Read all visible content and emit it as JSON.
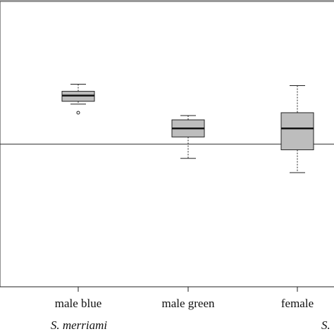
{
  "chart_data": {
    "type": "box",
    "categories": [
      "male blue",
      "male green",
      "female"
    ],
    "whisker_high": [
      0.42,
      0.2,
      0.41
    ],
    "q3": [
      0.37,
      0.17,
      0.22
    ],
    "median": [
      0.34,
      0.11,
      0.11
    ],
    "q1": [
      0.3,
      0.05,
      -0.04
    ],
    "whisker_low": [
      0.28,
      -0.1,
      -0.2
    ],
    "outliers": [
      [
        0.22
      ],
      [],
      []
    ],
    "color": "#bdbdbd",
    "reference_line": 0,
    "ylim": [
      -1,
      1
    ],
    "group_labels": [
      "S. merriami",
      "S."
    ]
  }
}
